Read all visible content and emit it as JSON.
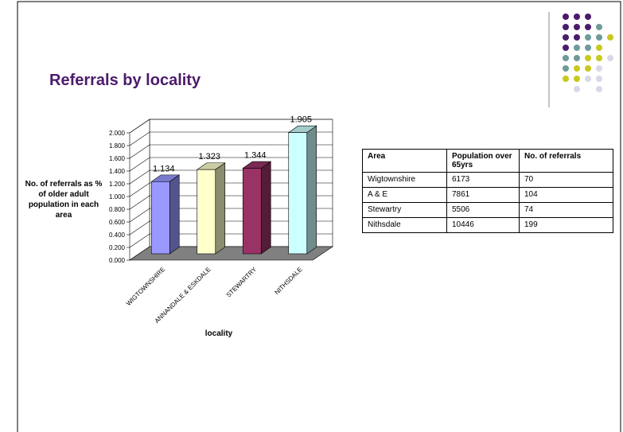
{
  "title": "Referrals by locality",
  "chart_data": {
    "type": "bar3d",
    "categories": [
      "WIGTOWNSHIRE",
      "ANNANDALE & ESKDALE",
      "STEWARTRY",
      "NITHSDALE"
    ],
    "values": [
      1.134,
      1.323,
      1.344,
      1.905
    ],
    "colors": [
      "#9999ff",
      "#ffffcc",
      "#993366",
      "#ccffff"
    ],
    "ylim": [
      0,
      2
    ],
    "yticks": [
      {
        "value": 0,
        "label": "0.000"
      },
      {
        "value": 0.2,
        "label": "0.200"
      },
      {
        "value": 0.4,
        "label": "0.400"
      },
      {
        "value": 0.6,
        "label": "0.600"
      },
      {
        "value": 0.8,
        "label": "0.800"
      },
      {
        "value": 1,
        "label": "1.000"
      },
      {
        "value": 1.2,
        "label": "1.200"
      },
      {
        "value": 1.4,
        "label": "1.400"
      },
      {
        "value": 1.6,
        "label": "1.600"
      },
      {
        "value": 1.8,
        "label": "1.800"
      },
      {
        "value": 2,
        "label": "2.000"
      }
    ],
    "grid": true,
    "y_label": "No. of referrals as % of older adult population in each area",
    "x_label": "locality"
  },
  "table": {
    "header": [
      "Area",
      "Population over 65yrs",
      "No. of referrals"
    ],
    "rows": [
      [
        "Wigtownshire",
        "6173",
        "70"
      ],
      [
        "A & E",
        "7861",
        "104"
      ],
      [
        "Stewartry",
        "5506",
        "74"
      ],
      [
        "Nithsdale",
        "10446",
        "199"
      ]
    ]
  }
}
